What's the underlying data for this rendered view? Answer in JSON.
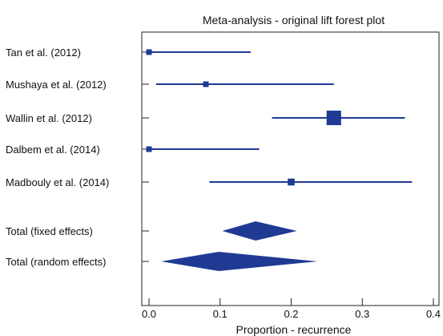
{
  "chart_data": {
    "type": "forest",
    "title": "Meta-analysis - original lift forest plot",
    "xlabel": "Proportion - recurrence",
    "ylabel": "",
    "xlim": [
      0,
      0.4
    ],
    "xticks": [
      0.0,
      0.1,
      0.2,
      0.3,
      0.4
    ],
    "xtick_labels": [
      "0.0",
      "0.1",
      "0.2",
      "0.3",
      "0.4"
    ],
    "grid": false,
    "legend": "none",
    "color": "#1f3a93",
    "studies": [
      {
        "label": "Tan et al. (2012)",
        "estimate": 0.0,
        "ci_low": 0.0,
        "ci_high": 0.143,
        "weight": 1
      },
      {
        "label": "Mushaya et al. (2012)",
        "estimate": 0.08,
        "ci_low": 0.01,
        "ci_high": 0.26,
        "weight": 1
      },
      {
        "label": "Wallin et al. (2012)",
        "estimate": 0.26,
        "ci_low": 0.173,
        "ci_high": 0.36,
        "weight": 3
      },
      {
        "label": "Dalbem et al. (2014)",
        "estimate": 0.0,
        "ci_low": 0.0,
        "ci_high": 0.155,
        "weight": 1
      },
      {
        "label": "Madbouly et al. (2014)",
        "estimate": 0.2,
        "ci_low": 0.085,
        "ci_high": 0.37,
        "weight": 1.5
      }
    ],
    "totals": [
      {
        "label": "Total (fixed effects)",
        "estimate": 0.15,
        "ci_low": 0.103,
        "ci_high": 0.208
      },
      {
        "label": "Total (random effects)",
        "estimate": 0.098,
        "ci_low": 0.017,
        "ci_high": 0.237
      }
    ]
  }
}
